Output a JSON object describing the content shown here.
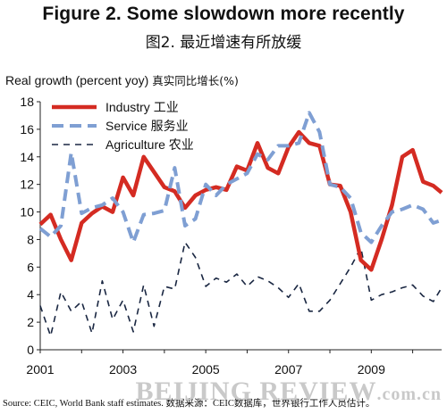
{
  "title": "Figure 2. Some slowdown more recently",
  "subtitle": "图2. 最近增速有所放缓",
  "source": "Source: CEIC, World Bank staff estimates.    数据来源：CEIC数据库，世界银行工作人员估计。",
  "watermark": "BEIJING REVIEW",
  "watermark_domain": ".com.cn",
  "colors": {
    "industry": "#d42b22",
    "service": "#7f9fd3",
    "agriculture": "#1a2742"
  },
  "chart_data": {
    "type": "line",
    "ylabel": "Real growth (percent yoy)",
    "ylabel_cn": "真实同比增长(%)",
    "ylim": [
      0,
      18
    ],
    "yticks": [
      0,
      2,
      4,
      6,
      8,
      10,
      12,
      14,
      16,
      18
    ],
    "xlim": [
      2001,
      2010.7
    ],
    "xticks": [
      "2001",
      "2003",
      "2005",
      "2007",
      "2009"
    ],
    "legend": "top-left",
    "grid": false,
    "series": [
      {
        "name": "Industry 工业",
        "key": "industry",
        "x": [
          2001.0,
          2001.25,
          2001.5,
          2001.75,
          2002.0,
          2002.25,
          2002.5,
          2002.75,
          2003.0,
          2003.25,
          2003.5,
          2003.75,
          2004.0,
          2004.25,
          2004.5,
          2004.75,
          2005.0,
          2005.25,
          2005.5,
          2005.75,
          2006.0,
          2006.25,
          2006.5,
          2006.75,
          2007.0,
          2007.25,
          2007.5,
          2007.75,
          2008.0,
          2008.25,
          2008.5,
          2008.75,
          2009.0,
          2009.25,
          2009.5,
          2009.75,
          2010.0,
          2010.25,
          2010.5,
          2010.7
        ],
        "values": [
          9.1,
          9.8,
          8.0,
          6.5,
          9.2,
          9.9,
          10.4,
          10.0,
          12.5,
          11.2,
          14.0,
          12.9,
          11.8,
          11.5,
          10.3,
          11.2,
          11.6,
          11.8,
          11.6,
          13.3,
          13.0,
          15.0,
          13.2,
          12.8,
          14.7,
          15.8,
          15.0,
          14.8,
          12.0,
          11.9,
          10.0,
          6.5,
          5.8,
          8.0,
          10.5,
          14.0,
          14.5,
          12.2,
          11.9,
          11.4
        ]
      },
      {
        "name": "Service 服务业",
        "key": "service",
        "x": [
          2001.0,
          2001.25,
          2001.5,
          2001.75,
          2002.0,
          2002.25,
          2002.5,
          2002.75,
          2003.0,
          2003.25,
          2003.5,
          2003.75,
          2004.0,
          2004.25,
          2004.5,
          2004.75,
          2005.0,
          2005.25,
          2005.5,
          2005.75,
          2006.0,
          2006.25,
          2006.5,
          2006.75,
          2007.0,
          2007.25,
          2007.5,
          2007.75,
          2008.0,
          2008.25,
          2008.5,
          2008.75,
          2009.0,
          2009.25,
          2009.5,
          2009.75,
          2010.0,
          2010.25,
          2010.5,
          2010.7
        ],
        "values": [
          8.8,
          8.2,
          9.0,
          14.3,
          9.9,
          10.3,
          10.5,
          11.0,
          10.0,
          7.8,
          9.8,
          9.9,
          10.1,
          13.2,
          9.0,
          9.5,
          12.0,
          11.2,
          12.0,
          12.4,
          12.8,
          14.2,
          13.8,
          14.8,
          14.8,
          15.0,
          17.2,
          15.8,
          12.0,
          11.8,
          11.0,
          8.5,
          7.8,
          9.0,
          10.0,
          10.2,
          10.5,
          10.2,
          9.2,
          9.4
        ]
      },
      {
        "name": "Agriculture 农业",
        "key": "agriculture",
        "x": [
          2001.0,
          2001.25,
          2001.5,
          2001.75,
          2002.0,
          2002.25,
          2002.5,
          2002.75,
          2003.0,
          2003.25,
          2003.5,
          2003.75,
          2004.0,
          2004.25,
          2004.5,
          2004.75,
          2005.0,
          2005.25,
          2005.5,
          2005.75,
          2006.0,
          2006.25,
          2006.5,
          2006.75,
          2007.0,
          2007.25,
          2007.5,
          2007.75,
          2008.0,
          2008.25,
          2008.5,
          2008.75,
          2009.0,
          2009.25,
          2009.5,
          2009.75,
          2010.0,
          2010.25,
          2010.5,
          2010.7
        ],
        "values": [
          3.2,
          1.0,
          4.2,
          2.8,
          3.5,
          1.2,
          5.0,
          2.2,
          3.6,
          1.3,
          4.7,
          1.7,
          4.6,
          4.4,
          7.8,
          6.7,
          4.6,
          5.2,
          4.9,
          5.5,
          4.6,
          5.3,
          5.0,
          4.5,
          3.8,
          4.8,
          2.8,
          2.8,
          3.6,
          4.8,
          6.0,
          7.4,
          3.6,
          4.0,
          4.2,
          4.5,
          4.7,
          3.9,
          3.5,
          4.5
        ]
      }
    ]
  }
}
